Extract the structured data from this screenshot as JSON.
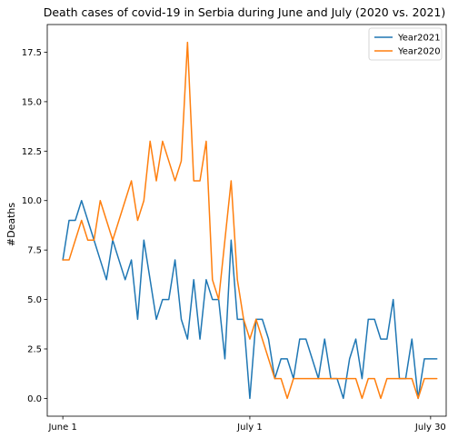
{
  "chart_data": {
    "type": "line",
    "title": "Death cases of covid-19 in Serbia during June and July (2020 vs. 2021)",
    "xlabel": "",
    "ylabel": "#Deaths",
    "x_tick_labels": [
      "June 1",
      "July 1",
      "July 30"
    ],
    "x_tick_positions": [
      0,
      30,
      59
    ],
    "y_ticks": [
      0.0,
      2.5,
      5.0,
      7.5,
      10.0,
      12.5,
      15.0,
      17.5
    ],
    "y_tick_labels": [
      "0.0",
      "2.5",
      "5.0",
      "7.5",
      "10.0",
      "12.5",
      "15.0",
      "17.5"
    ],
    "xlim": [
      -2.5,
      61.5
    ],
    "ylim": [
      -0.9,
      18.9
    ],
    "grid": false,
    "legend_position": "top-right",
    "series": [
      {
        "name": "Year2021",
        "color": "#1f77b4",
        "values": [
          7,
          9,
          9,
          10,
          9,
          8,
          7,
          6,
          8,
          7,
          6,
          7,
          4,
          8,
          6,
          4,
          5,
          5,
          7,
          4,
          3,
          6,
          3,
          6,
          5,
          5,
          2,
          8,
          4,
          4,
          0,
          4,
          4,
          3,
          1,
          2,
          2,
          1,
          3,
          3,
          2,
          1,
          3,
          1,
          1,
          0,
          2,
          3,
          1,
          4,
          4,
          3,
          3,
          5,
          1,
          1,
          3,
          0,
          2,
          2,
          2
        ]
      },
      {
        "name": "Year2020",
        "color": "#ff7f0e",
        "values": [
          7,
          7,
          8,
          9,
          8,
          8,
          10,
          9,
          8,
          9,
          10,
          11,
          9,
          10,
          13,
          11,
          13,
          12,
          11,
          12,
          18,
          11,
          11,
          13,
          6,
          5,
          8,
          11,
          6,
          4,
          3,
          4,
          3,
          2,
          1,
          1,
          0,
          1,
          1,
          1,
          1,
          1,
          1,
          1,
          1,
          1,
          1,
          1,
          0,
          1,
          1,
          0,
          1,
          1,
          1,
          1,
          1,
          0,
          1,
          1,
          1
        ]
      }
    ]
  }
}
